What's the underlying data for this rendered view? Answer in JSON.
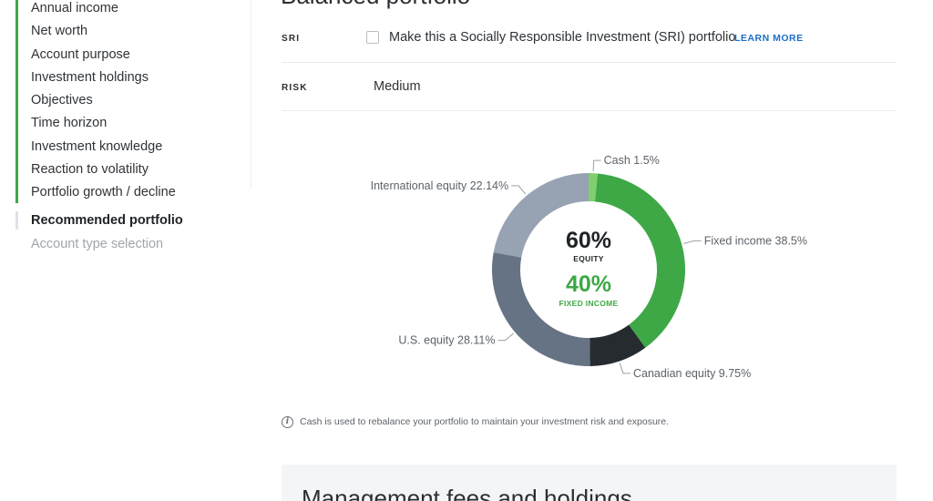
{
  "sidebar": {
    "completed_steps": [
      "Annual income",
      "Net worth",
      "Account purpose",
      "Investment holdings",
      "Objectives",
      "Time horizon",
      "Investment knowledge",
      "Reaction to volatility",
      "Portfolio growth / decline"
    ],
    "current_step": "Recommended portfolio",
    "upcoming_step": "Account type selection"
  },
  "main": {
    "title": "Balanced portfolio",
    "sri": {
      "label": "SRI",
      "checkbox_text": "Make this a Socially Responsible Investment (SRI) portfolio",
      "checked": false,
      "learn_more": "LEARN MORE"
    },
    "risk": {
      "label": "RISK",
      "value": "Medium"
    },
    "note": "Cash is used to rebalance your portfolio to maintain your investment risk and exposure.",
    "next_section_title": "Management fees and holdings"
  },
  "colors": {
    "accent_green": "#3ea846",
    "link_blue": "#1a6fc9"
  },
  "chart_data": {
    "type": "pie",
    "center": {
      "equity_value": "60%",
      "equity_label": "EQUITY",
      "fixed_value": "40%",
      "fixed_label": "FIXED INCOME"
    },
    "slices": [
      {
        "name": "Cash",
        "value": 1.5,
        "label": "Cash 1.5%",
        "color": "#7fcf6e"
      },
      {
        "name": "Fixed income",
        "value": 38.5,
        "label": "Fixed income 38.5%",
        "color": "#3ea846"
      },
      {
        "name": "Canadian equity",
        "value": 9.75,
        "label": "Canadian equity 9.75%",
        "color": "#262b30"
      },
      {
        "name": "U.S. equity",
        "value": 28.11,
        "label": "U.S. equity 28.11%",
        "color": "#667384"
      },
      {
        "name": "International equity",
        "value": 22.14,
        "label": "International equity 22.14%",
        "color": "#97a2b2"
      }
    ]
  }
}
